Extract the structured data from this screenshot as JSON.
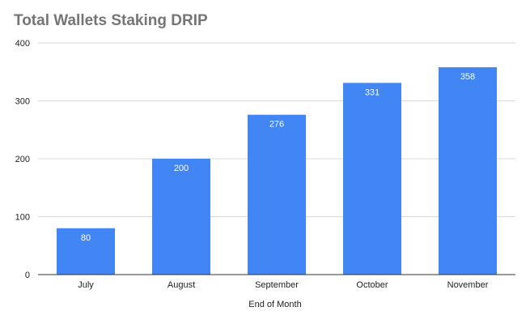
{
  "chart_data": {
    "type": "bar",
    "title": "Total Wallets Staking DRIP",
    "xlabel": "End of Month",
    "ylabel": "",
    "categories": [
      "July",
      "August",
      "September",
      "October",
      "November"
    ],
    "values": [
      80,
      200,
      276,
      331,
      358
    ],
    "data_labels": [
      "80",
      "200",
      "276",
      "331",
      "358"
    ],
    "ylim": [
      0,
      400
    ],
    "yticks": [
      0,
      100,
      200,
      300,
      400
    ],
    "ytick_labels": [
      "0",
      "100",
      "200",
      "300",
      "400"
    ],
    "grid": true,
    "legend": "none",
    "bar_color": "#4285f4"
  }
}
